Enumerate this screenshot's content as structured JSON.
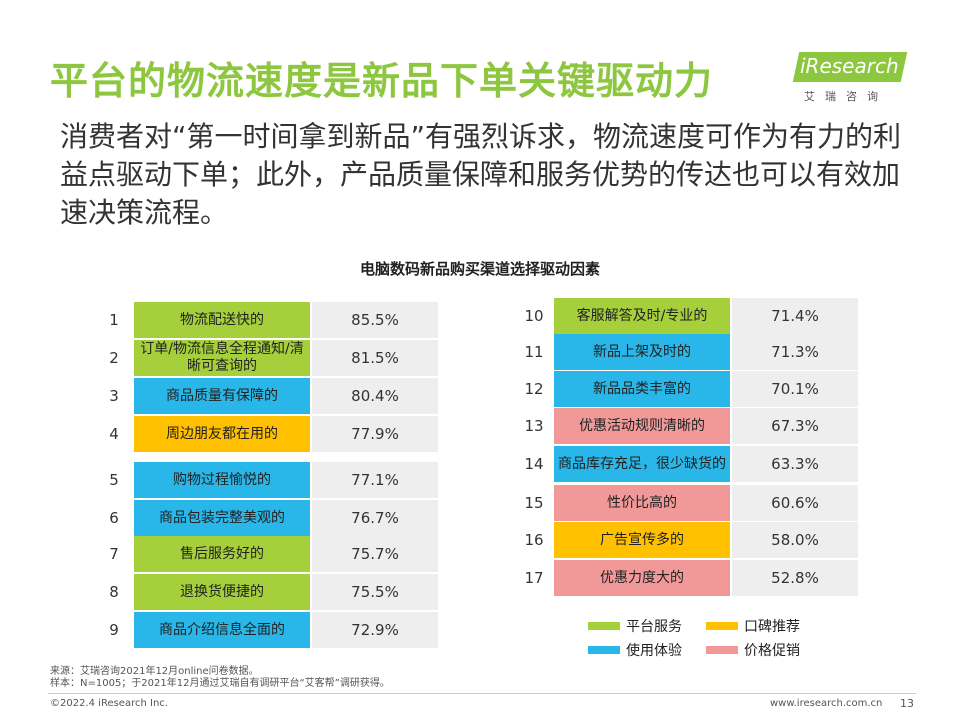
{
  "header": {
    "title": "平台的物流速度是新品下单关键驱动力",
    "subtitle": "消费者对“第一时间拿到新品”有强烈诉求，物流速度可作为有力的利益点驱动下单；此外，产品质量保障和服务优势的传达也可以有效加速决策流程。"
  },
  "logo": {
    "name": "iResearch",
    "sub": "艾瑞咨询"
  },
  "colors": {
    "platform": "#a5cf3b",
    "word_of_mouth": "#ffc000",
    "experience": "#29b6e8",
    "price": "#f19999"
  },
  "chart_data": {
    "type": "table",
    "title": "电脑数码新品购买渠道选择驱动因素",
    "unit": "%",
    "rows": [
      {
        "rank": "1",
        "label": "物流配送快的",
        "value": "85.5%",
        "group": "platform"
      },
      {
        "rank": "2",
        "label": "订单/物流信息全程通知/清晰可查询的",
        "value": "81.5%",
        "group": "platform"
      },
      {
        "rank": "3",
        "label": "商品质量有保障的",
        "value": "80.4%",
        "group": "experience"
      },
      {
        "rank": "4",
        "label": "周边朋友都在用的",
        "value": "77.9%",
        "group": "word_of_mouth"
      },
      {
        "rank": "5",
        "label": "购物过程愉悦的",
        "value": "77.1%",
        "group": "experience"
      },
      {
        "rank": "6",
        "label": "商品包装完整美观的",
        "value": "76.7%",
        "group": "experience"
      },
      {
        "rank": "7",
        "label": "售后服务好的",
        "value": "75.7%",
        "group": "platform"
      },
      {
        "rank": "8",
        "label": "退换货便捷的",
        "value": "75.5%",
        "group": "platform"
      },
      {
        "rank": "9",
        "label": "商品介绍信息全面的",
        "value": "72.9%",
        "group": "experience"
      },
      {
        "rank": "10",
        "label": "客服解答及时/专业的",
        "value": "71.4%",
        "group": "platform"
      },
      {
        "rank": "11",
        "label": "新品上架及时的",
        "value": "71.3%",
        "group": "experience"
      },
      {
        "rank": "12",
        "label": "新品品类丰富的",
        "value": "70.1%",
        "group": "experience"
      },
      {
        "rank": "13",
        "label": "优惠活动规则清晰的",
        "value": "67.3%",
        "group": "price"
      },
      {
        "rank": "14",
        "label": "商品库存充足，很少缺货的",
        "value": "63.3%",
        "group": "experience"
      },
      {
        "rank": "15",
        "label": "性价比高的",
        "value": "60.6%",
        "group": "price"
      },
      {
        "rank": "16",
        "label": "广告宣传多的",
        "value": "58.0%",
        "group": "word_of_mouth"
      },
      {
        "rank": "17",
        "label": "优惠力度大的",
        "value": "52.8%",
        "group": "price"
      }
    ],
    "legend": [
      {
        "key": "platform",
        "label": "平台服务"
      },
      {
        "key": "word_of_mouth",
        "label": "口碑推荐"
      },
      {
        "key": "experience",
        "label": "使用体验"
      },
      {
        "key": "price",
        "label": "价格促销"
      }
    ]
  },
  "footer": {
    "source": "来源：艾瑞咨询2021年12月online问卷数据。",
    "sample": "样本：N=1005；于2021年12月通过艾瑞自有调研平台“艾客帮”调研获得。",
    "copyright": "©2022.4 iResearch Inc.",
    "website": "www.iresearch.com.cn",
    "page": "13"
  }
}
